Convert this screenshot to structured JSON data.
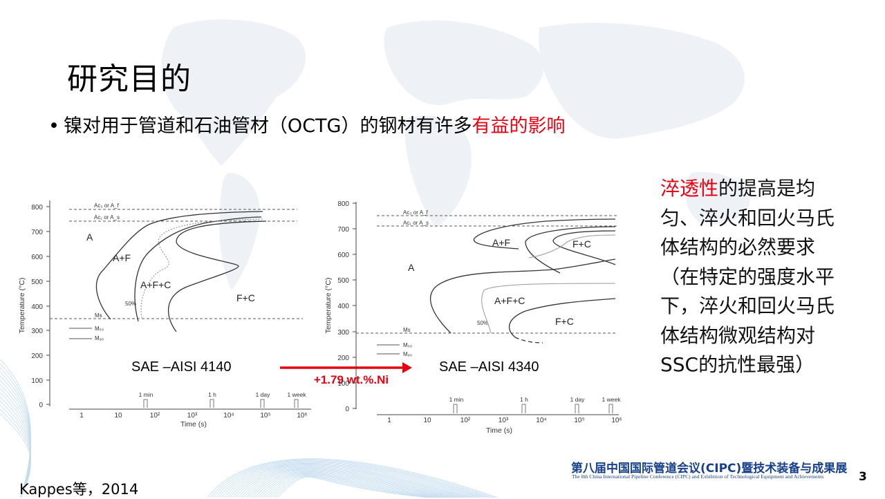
{
  "slide": {
    "title": "研究目的",
    "bullet": {
      "prefix": "镍对用于管道和石油管材（OCTG）的钢材有许多",
      "highlight": "有益的影响"
    },
    "side_text": {
      "highlight": "淬透性",
      "body": "的提高是均匀、淬火和回火马氏体结构的必然要求（在特定的强度水平下，淬火和回火马氏体结构微观结构对SSC的抗性最强）"
    },
    "citation": "Kappes等，2014",
    "conference_cn": "第八届中国国际管道会议(CIPC)暨技术装备与成果展",
    "conference_en": "The 8th China International Pipeline Conference (CIPC) and Exhibition of Technological Equipment and Achievements",
    "page_number": "3",
    "colors": {
      "highlight": "#e60012",
      "conference": "#16408a",
      "arrow": "#e60012"
    }
  },
  "diagrams": {
    "left": {
      "name": "SAE –AISI 4140",
      "y_axis_label": "Temperature (°C)",
      "x_axis_label": "Time (s)",
      "y_ticks": [
        "800",
        "700",
        "600",
        "500",
        "400",
        "300",
        "200",
        "100",
        "0"
      ],
      "x_ticks": [
        "1",
        "10",
        "10²",
        "10³",
        "10⁴",
        "10⁵",
        "10⁶"
      ],
      "time_markers": [
        "1 min",
        "1 h",
        "1 day",
        "1 week"
      ],
      "line_labels": [
        "Ac₃ or A_f",
        "Ac₁ or A_s",
        "Ms",
        "M₅₀",
        "M₉₀"
      ],
      "regions": [
        "A",
        "A+F",
        "A+F+C",
        "F+C"
      ],
      "percent_label": "50%"
    },
    "right": {
      "name": "SAE –AISI 4340",
      "y_axis_label": "Temperature (°C)",
      "x_axis_label": "Time (s)",
      "y_ticks": [
        "800",
        "700",
        "600",
        "500",
        "400",
        "300",
        "200",
        "100",
        "0"
      ],
      "x_ticks": [
        "1",
        "10",
        "10²",
        "10³",
        "10⁴",
        "10⁵",
        "10⁶"
      ],
      "time_markers": [
        "1 min",
        "1 h",
        "1 day",
        "1 week"
      ],
      "line_labels": [
        "Ac₃ or A_f",
        "Ac₁ or A_s",
        "Ms",
        "M₅₀",
        "M₉₀"
      ],
      "regions": [
        "A+F",
        "F+C",
        "A",
        "A+F+C",
        "F+C"
      ],
      "percent_label": "50%"
    },
    "arrow_label": "+1.79 wt.%.Ni"
  }
}
